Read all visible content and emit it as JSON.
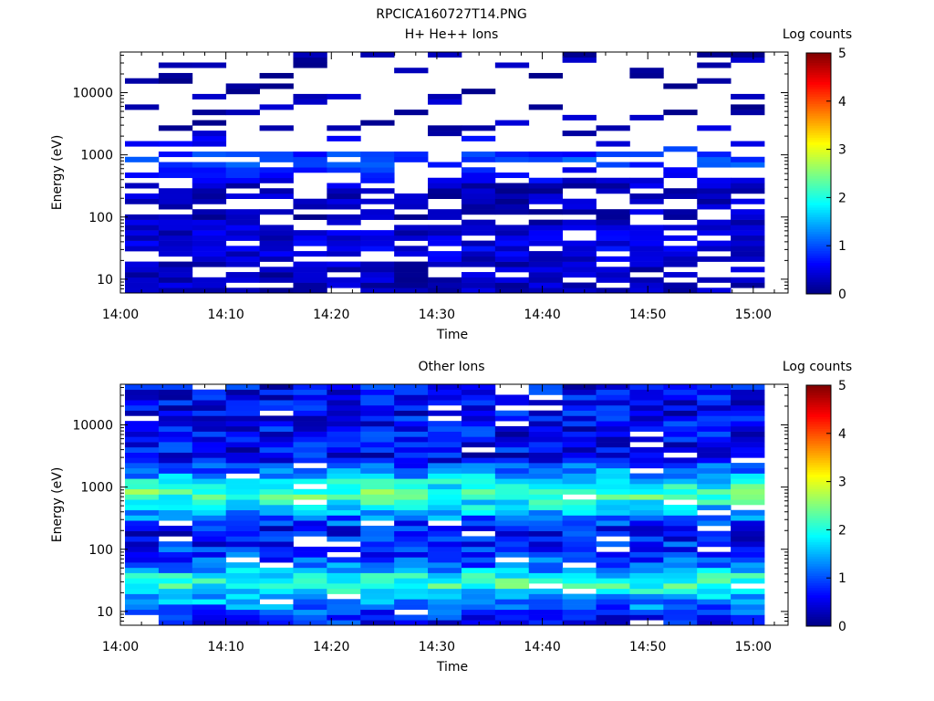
{
  "figure_title": "RPCICA160727T14.PNG",
  "chart_data": [
    {
      "type": "heatmap",
      "title": "H+ He++ Ions",
      "xlabel": "Time",
      "ylabel": "Energy (eV)",
      "x_ticks": [
        "14:00",
        "14:10",
        "14:20",
        "14:30",
        "14:40",
        "14:50",
        "15:00"
      ],
      "y_ticks": [
        10,
        100,
        1000,
        10000
      ],
      "y_scale": "log",
      "ylim": [
        6,
        45000
      ],
      "time_bins": 19,
      "colorbar": {
        "label": "Log counts",
        "min": 0,
        "max": 5,
        "ticks": [
          0,
          1,
          2,
          3,
          4,
          5
        ]
      },
      "summary_profile": [
        {
          "energy_ev": 10,
          "log_counts": 0.3
        },
        {
          "energy_ev": 15,
          "log_counts": 0.3
        },
        {
          "energy_ev": 30,
          "log_counts": 0.5
        },
        {
          "energy_ev": 100,
          "log_counts": 0.3
        },
        {
          "energy_ev": 300,
          "log_counts": 0.3
        },
        {
          "energy_ev": 800,
          "log_counts": 1.0
        },
        {
          "energy_ev": 3000,
          "log_counts": 0.2
        },
        {
          "energy_ev": 30000,
          "log_counts": 0.2
        }
      ]
    },
    {
      "type": "heatmap",
      "title": "Other Ions",
      "xlabel": "Time",
      "ylabel": "Energy (eV)",
      "x_ticks": [
        "14:00",
        "14:10",
        "14:20",
        "14:30",
        "14:40",
        "14:50",
        "15:00"
      ],
      "y_ticks": [
        10,
        100,
        1000,
        10000
      ],
      "y_scale": "log",
      "ylim": [
        6,
        45000
      ],
      "time_bins": 19,
      "colorbar": {
        "label": "Log counts",
        "min": 0,
        "max": 5,
        "ticks": [
          0,
          1,
          2,
          3,
          4,
          5
        ]
      },
      "summary_profile": [
        {
          "energy_ev": 8,
          "log_counts": 0.7
        },
        {
          "energy_ev": 30,
          "log_counts": 2.2
        },
        {
          "energy_ev": 60,
          "log_counts": 1.0
        },
        {
          "energy_ev": 200,
          "log_counts": 0.6
        },
        {
          "energy_ev": 800,
          "log_counts": 2.3
        },
        {
          "energy_ev": 3000,
          "log_counts": 0.6
        },
        {
          "energy_ev": 30000,
          "log_counts": 0.6
        }
      ]
    }
  ]
}
